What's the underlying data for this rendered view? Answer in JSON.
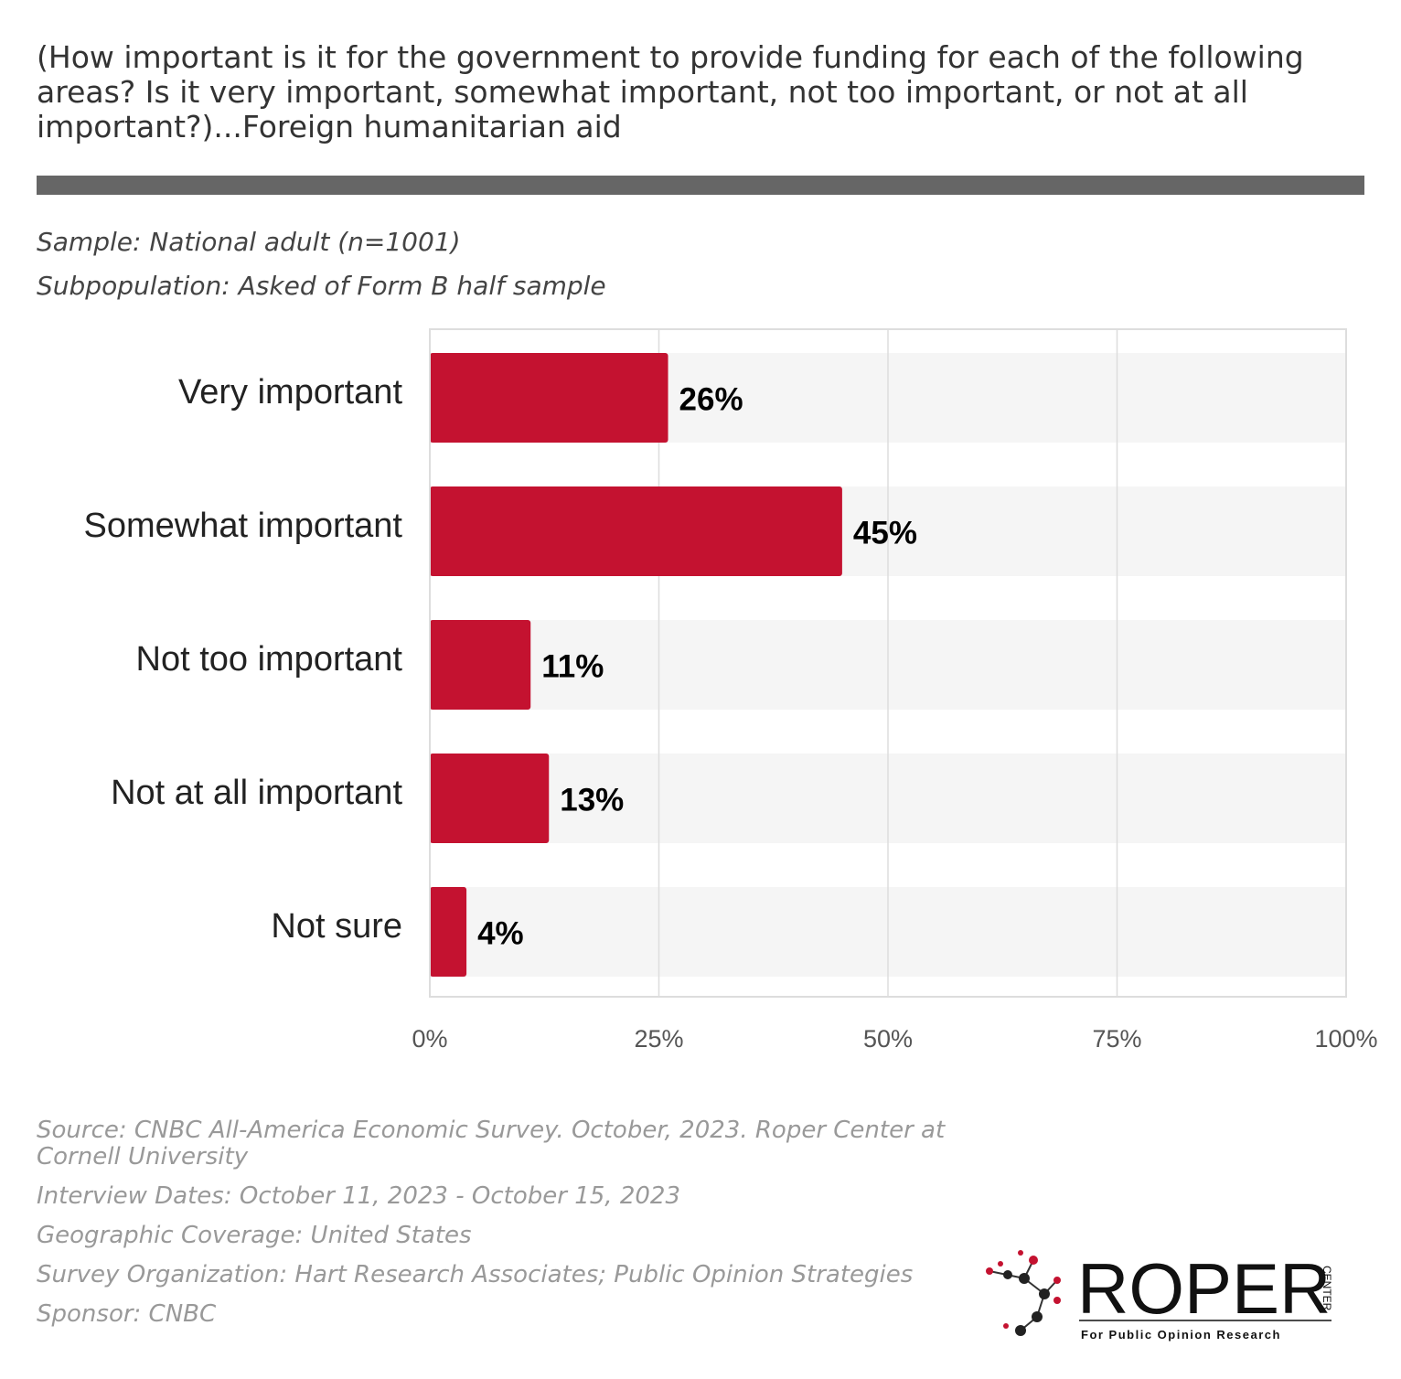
{
  "title": "(How important is it for the government to provide funding for each of the following areas? Is it very important, somewhat important, not too important, or not at all important?)...Foreign humanitarian aid",
  "sample": {
    "label": "Sample:",
    "value": "National adult (n=1001)"
  },
  "subpopulation": {
    "label": "Subpopulation:",
    "value": "Asked of Form B half sample"
  },
  "colors": {
    "bar": "#C41230",
    "track": "#F5F5F5",
    "grid": "#DDDDDD",
    "rule": "#666666"
  },
  "chart_data": {
    "type": "bar",
    "orientation": "horizontal",
    "categories": [
      "Very important",
      "Somewhat important",
      "Not too important",
      "Not at all important",
      "Not sure"
    ],
    "values": [
      26,
      45,
      11,
      13,
      4
    ],
    "value_labels": [
      "26%",
      "45%",
      "11%",
      "13%",
      "4%"
    ],
    "xlim": [
      0,
      100
    ],
    "xticks": [
      0,
      25,
      50,
      75,
      100
    ],
    "xtick_labels": [
      "0%",
      "25%",
      "50%",
      "75%",
      "100%"
    ],
    "grid": true
  },
  "footer": {
    "source": "Source: CNBC All-America Economic Survey. October, 2023. Roper Center at Cornell University",
    "interview_dates": "Interview Dates: October 11, 2023 - October 15, 2023",
    "geographic_coverage": "Geographic Coverage: United States",
    "survey_organization": "Survey Organization: Hart Research Associates; Public Opinion Strategies",
    "sponsor": "Sponsor: CNBC"
  },
  "logo": {
    "name": "ROPER",
    "side_text": "CENTER",
    "tagline": "For Public Opinion Research"
  }
}
